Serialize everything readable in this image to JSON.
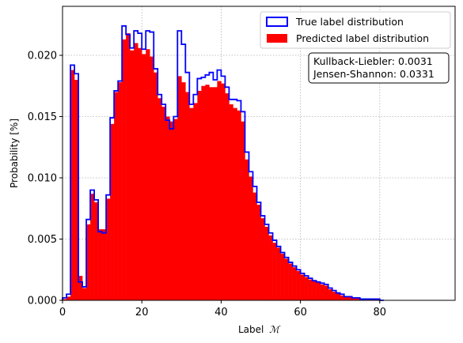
{
  "chart_data": {
    "type": "bar",
    "title": "",
    "xlabel": "Label",
    "xlabel_symbol": "ℳ",
    "ylabel": "Probability [%]",
    "xlim": [
      0,
      99
    ],
    "ylim": [
      0,
      0.024
    ],
    "grid": true,
    "legend_position": "top-right",
    "x_ticks": [
      0,
      20,
      40,
      60,
      80
    ],
    "x_tick_labels": [
      "0",
      "20",
      "40",
      "60",
      "80"
    ],
    "y_ticks": [
      0,
      0.005,
      0.01,
      0.015,
      0.02
    ],
    "y_tick_labels": [
      "0.000",
      "0.005",
      "0.010",
      "0.015",
      "0.020"
    ],
    "bin_edges_start": 0,
    "bin_width": 1,
    "series": [
      {
        "name": "True label distribution",
        "style": "step",
        "color": "#0000ff",
        "values": [
          0.0002,
          0.0005,
          0.0192,
          0.0185,
          0.0015,
          0.0011,
          0.0066,
          0.009,
          0.0082,
          0.0056,
          0.0055,
          0.0086,
          0.0149,
          0.0171,
          0.0179,
          0.0224,
          0.0217,
          0.0206,
          0.022,
          0.0218,
          0.0205,
          0.022,
          0.0219,
          0.0189,
          0.0168,
          0.016,
          0.0147,
          0.014,
          0.015,
          0.022,
          0.0209,
          0.0186,
          0.016,
          0.0168,
          0.0181,
          0.0182,
          0.0184,
          0.0186,
          0.018,
          0.0188,
          0.0183,
          0.0174,
          0.0164,
          0.0164,
          0.0163,
          0.0154,
          0.0121,
          0.0105,
          0.0093,
          0.008,
          0.0069,
          0.0062,
          0.0055,
          0.0049,
          0.0044,
          0.0039,
          0.0035,
          0.0031,
          0.0028,
          0.0025,
          0.0022,
          0.002,
          0.0018,
          0.0016,
          0.0015,
          0.0014,
          0.0013,
          0.001,
          0.0008,
          0.0006,
          0.0005,
          0.0003,
          0.0003,
          0.0002,
          0.0002,
          0.0001,
          0.0001,
          0.0001,
          0.0001,
          0.0001,
          0.0
        ]
      },
      {
        "name": "Predicted label distribution",
        "style": "bar",
        "color": "#ff0000",
        "values": [
          0.0001,
          0.0003,
          0.0188,
          0.018,
          0.002,
          0.001,
          0.0062,
          0.0087,
          0.008,
          0.0058,
          0.0058,
          0.0083,
          0.0144,
          0.017,
          0.0178,
          0.0213,
          0.0218,
          0.0204,
          0.021,
          0.0206,
          0.0201,
          0.0205,
          0.0199,
          0.0186,
          0.0165,
          0.0158,
          0.015,
          0.0146,
          0.0148,
          0.0183,
          0.0178,
          0.017,
          0.0157,
          0.0161,
          0.0171,
          0.0175,
          0.0176,
          0.0174,
          0.0174,
          0.0179,
          0.0177,
          0.0169,
          0.016,
          0.0157,
          0.0155,
          0.0146,
          0.0115,
          0.0101,
          0.0088,
          0.0078,
          0.0067,
          0.006,
          0.0053,
          0.0047,
          0.0043,
          0.0038,
          0.0034,
          0.003,
          0.0027,
          0.0024,
          0.0021,
          0.0019,
          0.0017,
          0.0016,
          0.0015,
          0.0013,
          0.0012,
          0.0009,
          0.0007,
          0.0006,
          0.0004,
          0.0003,
          0.0003,
          0.0002,
          0.0002,
          0.0001,
          0.0001,
          0.0001,
          0.0001,
          0.0001,
          0.0
        ]
      }
    ],
    "annotation": {
      "lines": [
        "Kullback-Liebler: 0.0031",
        "Jensen-Shannon: 0.0331"
      ]
    }
  }
}
